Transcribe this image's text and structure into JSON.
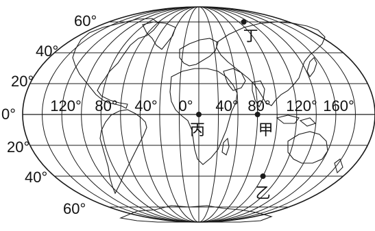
{
  "map": {
    "lat_labels_north": [
      "60°",
      "40°",
      "20°"
    ],
    "equator_label": "0°",
    "lat_labels_south": [
      "20°",
      "40°",
      "60°"
    ],
    "lon_labels": [
      "120°",
      "80°",
      "40°",
      "0°",
      "40°",
      "80°",
      "120°",
      "160°"
    ],
    "places": [
      {
        "label": "丙",
        "lon": 0,
        "lat": 0
      },
      {
        "label": "甲",
        "lon": 60,
        "lat": 0
      },
      {
        "label": "乙",
        "lon": 80,
        "lat": -40
      },
      {
        "label": "丁",
        "lon": 90,
        "lat": 60
      }
    ],
    "colors": {
      "ink": "#1a1a1a",
      "background": "#ffffff"
    }
  }
}
